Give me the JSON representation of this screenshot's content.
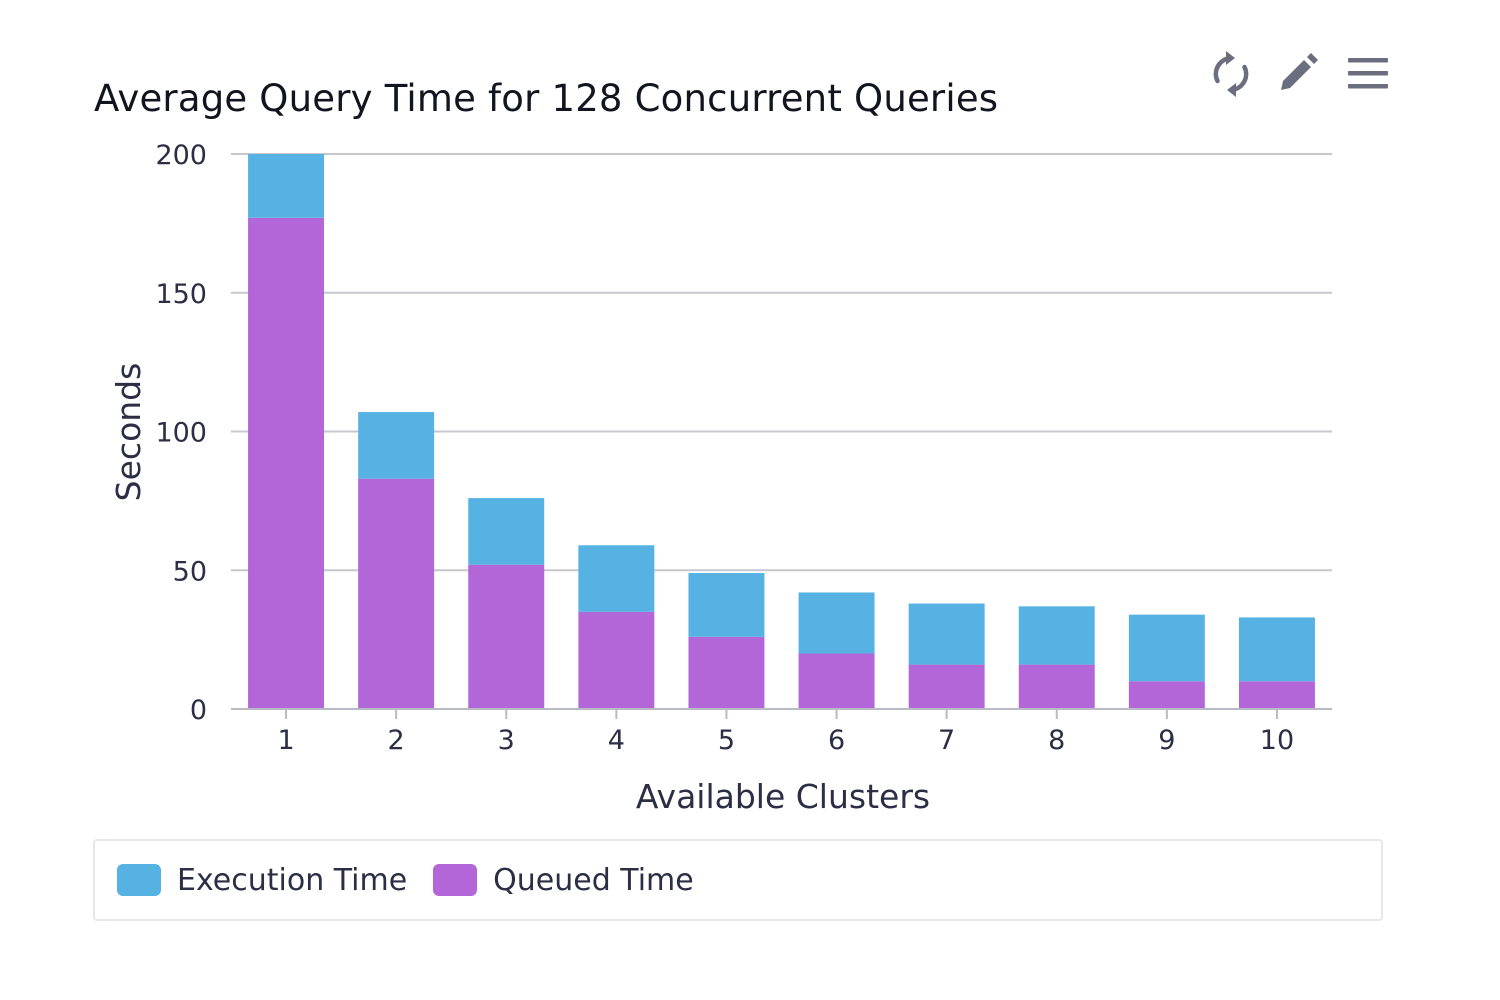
{
  "header": {
    "title": "Average Query Time for 128 Concurrent Queries"
  },
  "toolbar": {
    "refresh_icon": "refresh-icon",
    "edit_icon": "pencil-icon",
    "menu_icon": "hamburger-menu-icon"
  },
  "chart_data": {
    "type": "bar",
    "stacked": true,
    "title": "Average Query Time for 128 Concurrent Queries",
    "xlabel": "Available Clusters",
    "ylabel": "Seconds",
    "categories": [
      "1",
      "2",
      "3",
      "4",
      "5",
      "6",
      "7",
      "8",
      "9",
      "10"
    ],
    "ylim": [
      0,
      200
    ],
    "yticks": [
      0,
      50,
      100,
      150,
      200
    ],
    "grid": true,
    "legend_position": "bottom",
    "series": [
      {
        "name": "Queued Time",
        "color": "#b266d8",
        "values": [
          177,
          83,
          52,
          35,
          26,
          20,
          16,
          16,
          10,
          10
        ]
      },
      {
        "name": "Execution Time",
        "color": "#56b2e2",
        "values": [
          23,
          24,
          24,
          24,
          23,
          22,
          22,
          21,
          24,
          23
        ]
      }
    ]
  },
  "legend": {
    "items": [
      {
        "label": "Execution Time",
        "color": "#56b2e2"
      },
      {
        "label": "Queued Time",
        "color": "#b266d8"
      }
    ]
  },
  "colors": {
    "grid": "#c7c8cf",
    "axis": "#b9bbc4",
    "text": "#2b2e45",
    "icon": "#6b6e7e"
  }
}
